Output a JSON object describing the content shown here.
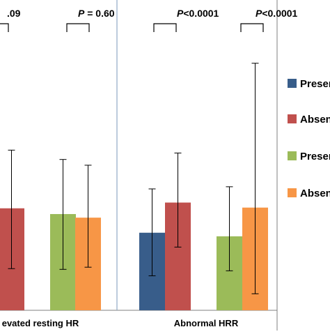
{
  "chart_data": {
    "type": "bar",
    "groups": [
      {
        "label": "evated resting HR",
        "pairs": [
          {
            "p_prefix": "",
            "p_value": ".09",
            "bars": [
              {
                "series": "absent-red",
                "value": 84.2,
                "err_low": 75.8,
                "err_high": 92.3
              }
            ]
          },
          {
            "p_prefix": "P",
            "p_value": "= 0.60",
            "bars": [
              {
                "series": "present-green",
                "value": 83.4,
                "err_low": 75.7,
                "err_high": 91.0
              },
              {
                "series": "absent-orange",
                "value": 82.9,
                "err_low": 76.0,
                "err_high": 90.2
              }
            ]
          }
        ]
      },
      {
        "label": "Abnormal HRR",
        "pairs": [
          {
            "p_prefix": "P",
            "p_value": "<0.0001",
            "bars": [
              {
                "series": "present-blue",
                "value": 80.8,
                "err_low": 74.8,
                "err_high": 86.9
              },
              {
                "series": "absent-red",
                "value": 85.0,
                "err_low": 78.8,
                "err_high": 91.9
              }
            ]
          },
          {
            "p_prefix": "P",
            "p_value": "<0.0001",
            "bars": [
              {
                "series": "present-green",
                "value": 80.3,
                "err_low": 75.5,
                "err_high": 87.2
              },
              {
                "series": "absent-orange",
                "value": 84.3,
                "err_low": 72.3,
                "err_high": 104.4
              }
            ]
          }
        ]
      }
    ],
    "legend": [
      {
        "key": "present-blue",
        "label": "Presen",
        "color": "#385D8A"
      },
      {
        "key": "absent-red",
        "label": "Absen",
        "color": "#C0504D"
      },
      {
        "key": "present-green",
        "label": "Presen",
        "color": "#9BBB59"
      },
      {
        "key": "absent-orange",
        "label": "Absen",
        "color": "#F79646"
      }
    ],
    "legend_position": "right",
    "ylim": [
      70,
      110
    ],
    "grid": false
  }
}
